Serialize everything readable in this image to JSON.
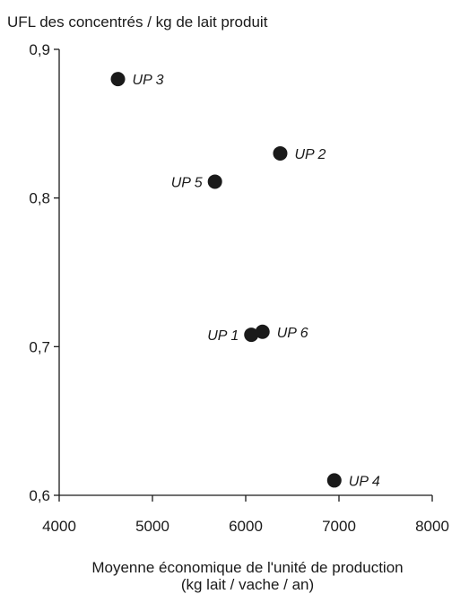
{
  "chart_data": {
    "type": "scatter",
    "title": "",
    "ylabel": "UFL des concentrés / kg de lait produit",
    "xlabel": [
      "Moyenne économique  de l'unité de production",
      "(kg lait / vache / an)"
    ],
    "xlim": [
      4000,
      8000
    ],
    "ylim": [
      0.6,
      0.9
    ],
    "x_ticks": [
      {
        "value": 4000,
        "label": "4000"
      },
      {
        "value": 5000,
        "label": "5000"
      },
      {
        "value": 6000,
        "label": "6000"
      },
      {
        "value": 7000,
        "label": "7000"
      },
      {
        "value": 8000,
        "label": "8000"
      }
    ],
    "y_ticks": [
      {
        "value": 0.6,
        "label": "0,6"
      },
      {
        "value": 0.7,
        "label": "0,7"
      },
      {
        "value": 0.8,
        "label": "0,8"
      },
      {
        "value": 0.9,
        "label": "0,9"
      }
    ],
    "grid": false,
    "points": [
      {
        "label": "UP 3",
        "x": 4630,
        "y": 0.88,
        "label_side": "right"
      },
      {
        "label": "UP 2",
        "x": 6370,
        "y": 0.83,
        "label_side": "right"
      },
      {
        "label": "UP 5",
        "x": 5670,
        "y": 0.811,
        "label_side": "left"
      },
      {
        "label": "UP 1",
        "x": 6060,
        "y": 0.708,
        "label_side": "left"
      },
      {
        "label": "UP 6",
        "x": 6180,
        "y": 0.71,
        "label_side": "right"
      },
      {
        "label": "UP 4",
        "x": 6950,
        "y": 0.61,
        "label_side": "right"
      }
    ],
    "marker_color": "#1a1a1a",
    "axis_color": "#1a1a1a"
  }
}
